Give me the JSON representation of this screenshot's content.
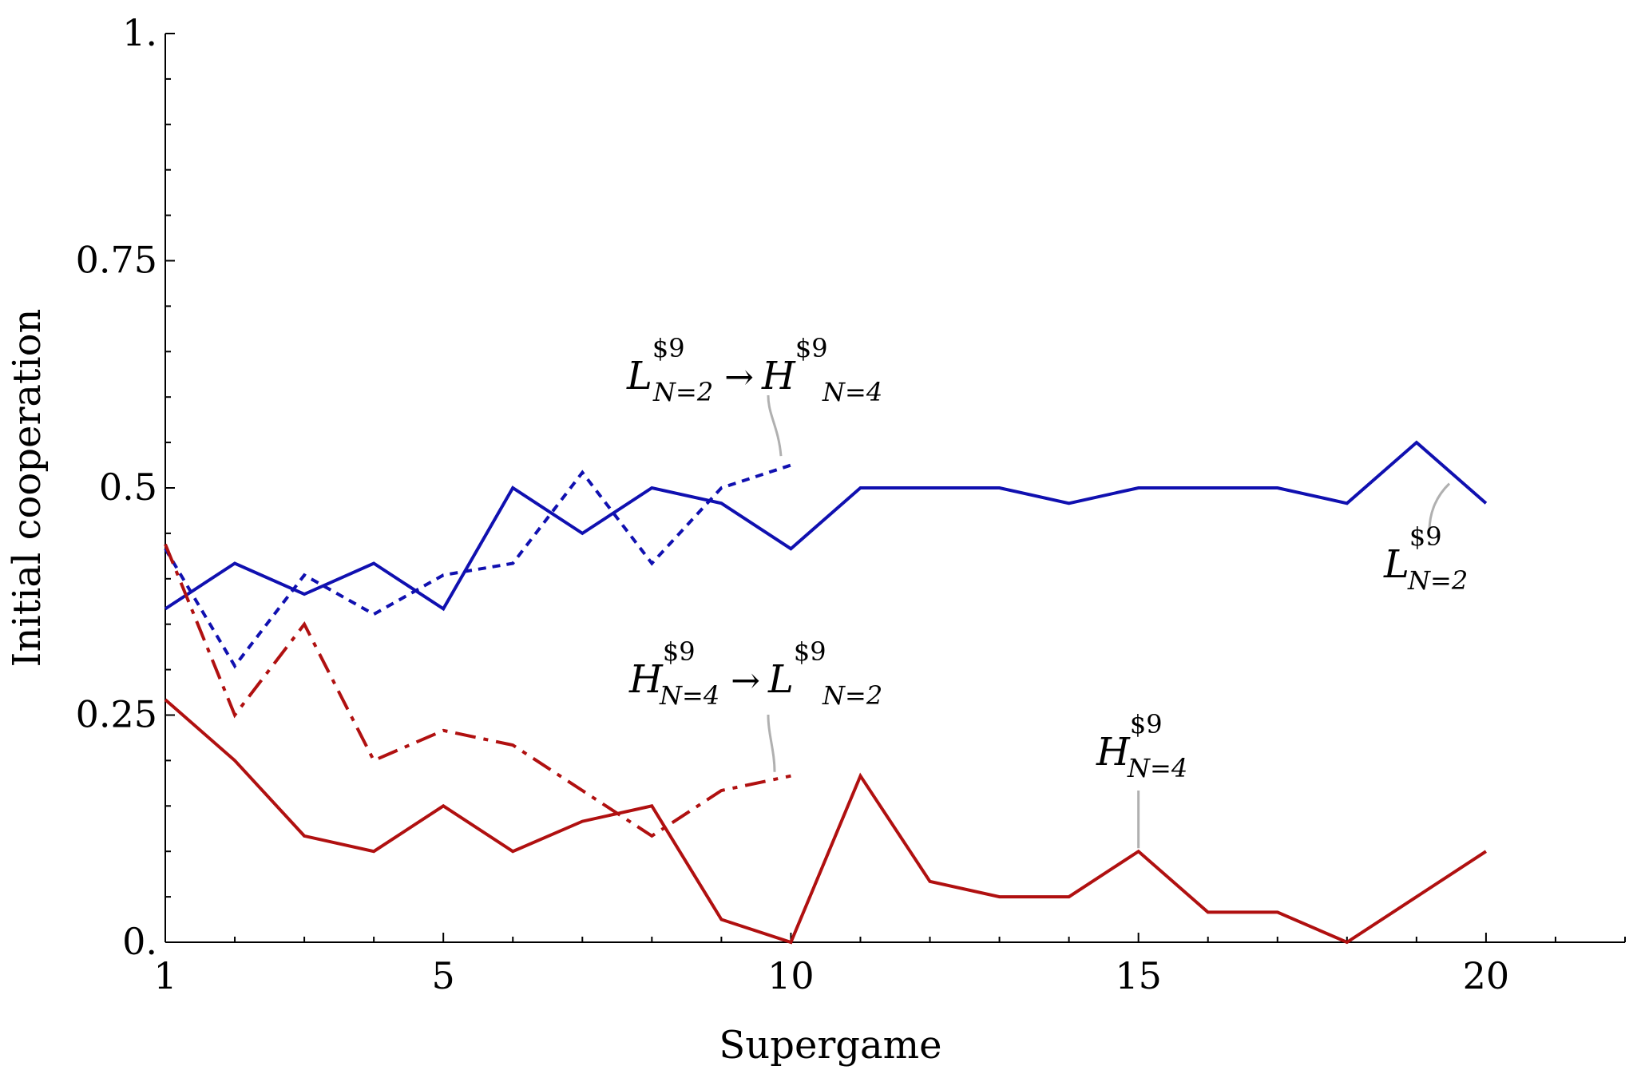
{
  "chart_data": {
    "type": "line",
    "xlabel": "Supergame",
    "ylabel": "Initial cooperation",
    "xlim": [
      1,
      22
    ],
    "ylim": [
      0,
      1
    ],
    "xticks": [
      1,
      5,
      10,
      15,
      20
    ],
    "xtick_labels": [
      "1",
      "5",
      "10",
      "15",
      "20"
    ],
    "yticks": [
      0,
      0.25,
      0.5,
      0.75,
      1
    ],
    "ytick_labels": [
      "0.",
      "0.25",
      "0.5",
      "0.75",
      "1."
    ],
    "grid": false,
    "series": [
      {
        "style": "solid",
        "color": "#1010b0",
        "x": [
          1,
          2,
          3,
          4,
          5,
          6,
          7,
          8,
          9,
          10,
          11,
          12,
          13,
          14,
          15,
          16,
          17,
          18,
          19,
          20
        ],
        "y": [
          0.367,
          0.417,
          0.383,
          0.417,
          0.367,
          0.5,
          0.45,
          0.5,
          0.483,
          0.433,
          0.5,
          0.5,
          0.5,
          0.483,
          0.5,
          0.5,
          0.5,
          0.483,
          0.55,
          0.483
        ]
      },
      {
        "style": "dotted",
        "color": "#1010b0",
        "x": [
          1,
          2,
          3,
          4,
          5,
          6,
          7,
          8,
          9,
          10
        ],
        "y": [
          0.433,
          0.304,
          0.404,
          0.361,
          0.404,
          0.417,
          0.517,
          0.417,
          0.5,
          0.525
        ]
      },
      {
        "style": "solid",
        "color": "#b01010",
        "x": [
          1,
          2,
          3,
          4,
          5,
          6,
          7,
          8,
          9,
          10,
          11,
          12,
          13,
          14,
          15,
          16,
          17,
          18,
          19,
          20
        ],
        "y": [
          0.267,
          0.2,
          0.117,
          0.1,
          0.15,
          0.1,
          0.133,
          0.15,
          0.025,
          0.0,
          0.183,
          0.067,
          0.05,
          0.05,
          0.1,
          0.033,
          0.033,
          0.0,
          0.05,
          0.1
        ]
      },
      {
        "style": "dashdot",
        "color": "#b01010",
        "x": [
          1,
          2,
          3,
          4,
          5,
          6,
          7,
          8,
          9,
          10
        ],
        "y": [
          0.438,
          0.25,
          0.35,
          0.2,
          0.233,
          0.217,
          0.167,
          0.117,
          0.167,
          0.183
        ]
      }
    ],
    "annotations": [
      {
        "main1": "L",
        "sup1": "$9",
        "sub1": "N=2",
        "arrow": "→",
        "main2": "H",
        "sup2": "$9",
        "sub2": "N=4"
      },
      {
        "main1": "H",
        "sup1": "$9",
        "sub1": "N=4",
        "arrow": "→",
        "main2": "L",
        "sup2": "$9",
        "sub2": "N=2"
      },
      {
        "main1": "L",
        "sup1": "$9",
        "sub1": "N=2"
      },
      {
        "main1": "H",
        "sup1": "$9",
        "sub1": "N=4"
      }
    ]
  }
}
